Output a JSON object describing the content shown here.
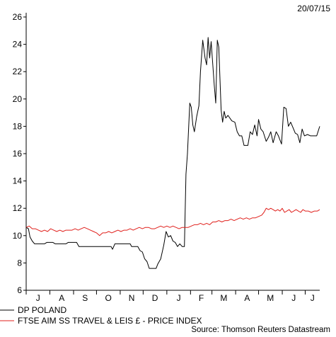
{
  "header": {
    "date": "20/07/15"
  },
  "source": "Source: Thomson Reuters Datastream",
  "chart_data": {
    "type": "line",
    "title": "",
    "xlabel": "",
    "ylabel": "",
    "ylim": [
      6,
      26
    ],
    "yticks": [
      6,
      8,
      10,
      12,
      14,
      16,
      18,
      20,
      22,
      24,
      26
    ],
    "xlim": [
      "2014-07-01",
      "2015-07-20"
    ],
    "months": [
      {
        "label": "J",
        "date": "2014-07-01"
      },
      {
        "label": "A",
        "date": "2014-08-01"
      },
      {
        "label": "S",
        "date": "2014-09-01"
      },
      {
        "label": "O",
        "date": "2014-10-01"
      },
      {
        "label": "N",
        "date": "2014-11-01"
      },
      {
        "label": "D",
        "date": "2014-12-01"
      },
      {
        "label": "J",
        "date": "2015-01-01"
      },
      {
        "label": "F",
        "date": "2015-02-01"
      },
      {
        "label": "M",
        "date": "2015-03-01"
      },
      {
        "label": "A",
        "date": "2015-04-01"
      },
      {
        "label": "M",
        "date": "2015-05-01"
      },
      {
        "label": "J",
        "date": "2015-06-01"
      },
      {
        "label": "J",
        "date": "2015-07-01"
      }
    ],
    "grid": false,
    "legend_position": "bottom-left",
    "series": [
      {
        "name": "DP POLAND",
        "color": "#000000",
        "points": [
          [
            "2014-07-01",
            10.6
          ],
          [
            "2014-07-04",
            10.5
          ],
          [
            "2014-07-06",
            9.9
          ],
          [
            "2014-07-09",
            9.6
          ],
          [
            "2014-07-12",
            9.4
          ],
          [
            "2014-07-25",
            9.4
          ],
          [
            "2014-07-28",
            9.5
          ],
          [
            "2014-08-05",
            9.5
          ],
          [
            "2014-08-08",
            9.4
          ],
          [
            "2014-08-22",
            9.4
          ],
          [
            "2014-08-25",
            9.5
          ],
          [
            "2014-09-05",
            9.5
          ],
          [
            "2014-09-08",
            9.2
          ],
          [
            "2014-10-20",
            9.2
          ],
          [
            "2014-10-22",
            9.0
          ],
          [
            "2014-10-25",
            9.4
          ],
          [
            "2014-11-14",
            9.4
          ],
          [
            "2014-11-16",
            9.2
          ],
          [
            "2014-11-24",
            9.2
          ],
          [
            "2014-11-27",
            8.9
          ],
          [
            "2014-11-30",
            8.8
          ],
          [
            "2014-12-03",
            8.3
          ],
          [
            "2014-12-06",
            8.1
          ],
          [
            "2014-12-09",
            7.6
          ],
          [
            "2014-12-18",
            7.6
          ],
          [
            "2014-12-20",
            7.9
          ],
          [
            "2014-12-24",
            8.3
          ],
          [
            "2014-12-28",
            9.3
          ],
          [
            "2014-12-31",
            10.3
          ],
          [
            "2015-01-03",
            9.9
          ],
          [
            "2015-01-06",
            10.0
          ],
          [
            "2015-01-09",
            9.6
          ],
          [
            "2015-01-12",
            9.5
          ],
          [
            "2015-01-15",
            9.2
          ],
          [
            "2015-01-18",
            9.4
          ],
          [
            "2015-01-21",
            9.2
          ],
          [
            "2015-01-24",
            9.2
          ],
          [
            "2015-01-26",
            14.5
          ],
          [
            "2015-01-28",
            16.0
          ],
          [
            "2015-01-31",
            19.7
          ],
          [
            "2015-02-02",
            19.4
          ],
          [
            "2015-02-04",
            18.1
          ],
          [
            "2015-02-06",
            17.6
          ],
          [
            "2015-02-09",
            18.7
          ],
          [
            "2015-02-12",
            19.5
          ],
          [
            "2015-02-14",
            22.0
          ],
          [
            "2015-02-17",
            24.3
          ],
          [
            "2015-02-20",
            23.0
          ],
          [
            "2015-02-22",
            22.5
          ],
          [
            "2015-02-24",
            24.5
          ],
          [
            "2015-02-26",
            23.0
          ],
          [
            "2015-02-28",
            24.2
          ],
          [
            "2015-03-02",
            22.6
          ],
          [
            "2015-03-04",
            21.0
          ],
          [
            "2015-03-06",
            19.7
          ],
          [
            "2015-03-08",
            24.3
          ],
          [
            "2015-03-10",
            23.8
          ],
          [
            "2015-03-13",
            19.2
          ],
          [
            "2015-03-15",
            18.3
          ],
          [
            "2015-03-17",
            19.1
          ],
          [
            "2015-03-19",
            18.6
          ],
          [
            "2015-03-22",
            18.8
          ],
          [
            "2015-03-27",
            18.4
          ],
          [
            "2015-03-31",
            18.3
          ],
          [
            "2015-04-03",
            17.6
          ],
          [
            "2015-04-06",
            17.3
          ],
          [
            "2015-04-09",
            17.3
          ],
          [
            "2015-04-12",
            16.6
          ],
          [
            "2015-04-17",
            16.6
          ],
          [
            "2015-04-20",
            17.6
          ],
          [
            "2015-04-23",
            17.4
          ],
          [
            "2015-04-26",
            18.1
          ],
          [
            "2015-04-29",
            17.3
          ],
          [
            "2015-05-01",
            18.5
          ],
          [
            "2015-05-04",
            17.8
          ],
          [
            "2015-05-07",
            17.6
          ],
          [
            "2015-05-11",
            16.9
          ],
          [
            "2015-05-14",
            17.2
          ],
          [
            "2015-05-17",
            17.6
          ],
          [
            "2015-05-20",
            16.8
          ],
          [
            "2015-05-24",
            17.6
          ],
          [
            "2015-05-27",
            17.3
          ],
          [
            "2015-05-31",
            16.7
          ],
          [
            "2015-06-03",
            19.4
          ],
          [
            "2015-06-06",
            19.3
          ],
          [
            "2015-06-09",
            18.0
          ],
          [
            "2015-06-12",
            18.3
          ],
          [
            "2015-06-15",
            17.9
          ],
          [
            "2015-06-18",
            17.5
          ],
          [
            "2015-06-21",
            17.4
          ],
          [
            "2015-06-24",
            16.8
          ],
          [
            "2015-06-27",
            17.8
          ],
          [
            "2015-06-30",
            17.3
          ],
          [
            "2015-07-04",
            17.4
          ],
          [
            "2015-07-08",
            17.3
          ],
          [
            "2015-07-12",
            17.3
          ],
          [
            "2015-07-16",
            17.3
          ],
          [
            "2015-07-20",
            18.0
          ]
        ]
      },
      {
        "name": "FTSE AIM SS TRAVEL & LEIS £ - PRICE INDEX",
        "color": "#e0201c",
        "points": [
          [
            "2014-07-01",
            10.6
          ],
          [
            "2014-07-05",
            10.7
          ],
          [
            "2014-07-09",
            10.5
          ],
          [
            "2014-07-13",
            10.5
          ],
          [
            "2014-07-17",
            10.4
          ],
          [
            "2014-07-21",
            10.3
          ],
          [
            "2014-07-25",
            10.4
          ],
          [
            "2014-07-29",
            10.3
          ],
          [
            "2014-08-02",
            10.5
          ],
          [
            "2014-08-06",
            10.4
          ],
          [
            "2014-08-10",
            10.3
          ],
          [
            "2014-08-14",
            10.4
          ],
          [
            "2014-08-18",
            10.3
          ],
          [
            "2014-08-22",
            10.4
          ],
          [
            "2014-08-26",
            10.4
          ],
          [
            "2014-08-30",
            10.4
          ],
          [
            "2014-09-03",
            10.5
          ],
          [
            "2014-09-07",
            10.4
          ],
          [
            "2014-09-11",
            10.5
          ],
          [
            "2014-09-15",
            10.6
          ],
          [
            "2014-09-19",
            10.5
          ],
          [
            "2014-09-23",
            10.4
          ],
          [
            "2014-09-27",
            10.3
          ],
          [
            "2014-10-01",
            10.2
          ],
          [
            "2014-10-05",
            10.0
          ],
          [
            "2014-10-09",
            10.2
          ],
          [
            "2014-10-13",
            10.2
          ],
          [
            "2014-10-17",
            10.3
          ],
          [
            "2014-10-21",
            10.2
          ],
          [
            "2014-10-25",
            10.3
          ],
          [
            "2014-10-29",
            10.4
          ],
          [
            "2014-11-02",
            10.3
          ],
          [
            "2014-11-06",
            10.4
          ],
          [
            "2014-11-10",
            10.4
          ],
          [
            "2014-11-14",
            10.5
          ],
          [
            "2014-11-18",
            10.4
          ],
          [
            "2014-11-22",
            10.5
          ],
          [
            "2014-11-26",
            10.6
          ],
          [
            "2014-11-30",
            10.5
          ],
          [
            "2014-12-04",
            10.6
          ],
          [
            "2014-12-08",
            10.6
          ],
          [
            "2014-12-12",
            10.5
          ],
          [
            "2014-12-16",
            10.5
          ],
          [
            "2014-12-20",
            10.6
          ],
          [
            "2014-12-24",
            10.7
          ],
          [
            "2014-12-28",
            10.6
          ],
          [
            "2015-01-01",
            10.7
          ],
          [
            "2015-01-05",
            10.6
          ],
          [
            "2015-01-09",
            10.7
          ],
          [
            "2015-01-13",
            10.6
          ],
          [
            "2015-01-17",
            10.5
          ],
          [
            "2015-01-21",
            10.6
          ],
          [
            "2015-01-25",
            10.6
          ],
          [
            "2015-01-29",
            10.6
          ],
          [
            "2015-02-02",
            10.7
          ],
          [
            "2015-02-06",
            10.8
          ],
          [
            "2015-02-10",
            10.8
          ],
          [
            "2015-02-14",
            10.9
          ],
          [
            "2015-02-18",
            10.8
          ],
          [
            "2015-02-22",
            10.9
          ],
          [
            "2015-02-26",
            10.8
          ],
          [
            "2015-03-02",
            11.0
          ],
          [
            "2015-03-06",
            11.0
          ],
          [
            "2015-03-10",
            11.1
          ],
          [
            "2015-03-14",
            11.0
          ],
          [
            "2015-03-18",
            11.1
          ],
          [
            "2015-03-22",
            11.1
          ],
          [
            "2015-03-26",
            11.2
          ],
          [
            "2015-03-30",
            11.1
          ],
          [
            "2015-04-03",
            11.2
          ],
          [
            "2015-04-07",
            11.3
          ],
          [
            "2015-04-11",
            11.2
          ],
          [
            "2015-04-15",
            11.3
          ],
          [
            "2015-04-19",
            11.2
          ],
          [
            "2015-04-23",
            11.3
          ],
          [
            "2015-04-27",
            11.3
          ],
          [
            "2015-05-01",
            11.4
          ],
          [
            "2015-05-05",
            11.5
          ],
          [
            "2015-05-08",
            11.7
          ],
          [
            "2015-05-11",
            12.0
          ],
          [
            "2015-05-14",
            11.9
          ],
          [
            "2015-05-17",
            12.0
          ],
          [
            "2015-05-20",
            11.9
          ],
          [
            "2015-05-23",
            11.8
          ],
          [
            "2015-05-26",
            11.9
          ],
          [
            "2015-05-29",
            11.8
          ],
          [
            "2015-06-01",
            12.0
          ],
          [
            "2015-06-04",
            11.7
          ],
          [
            "2015-06-07",
            11.8
          ],
          [
            "2015-06-10",
            11.9
          ],
          [
            "2015-06-13",
            11.7
          ],
          [
            "2015-06-16",
            11.8
          ],
          [
            "2015-06-19",
            11.9
          ],
          [
            "2015-06-22",
            11.8
          ],
          [
            "2015-06-25",
            11.7
          ],
          [
            "2015-06-28",
            11.9
          ],
          [
            "2015-07-01",
            11.8
          ],
          [
            "2015-07-05",
            11.8
          ],
          [
            "2015-07-09",
            11.7
          ],
          [
            "2015-07-13",
            11.8
          ],
          [
            "2015-07-17",
            11.8
          ],
          [
            "2015-07-20",
            11.9
          ]
        ]
      }
    ]
  }
}
